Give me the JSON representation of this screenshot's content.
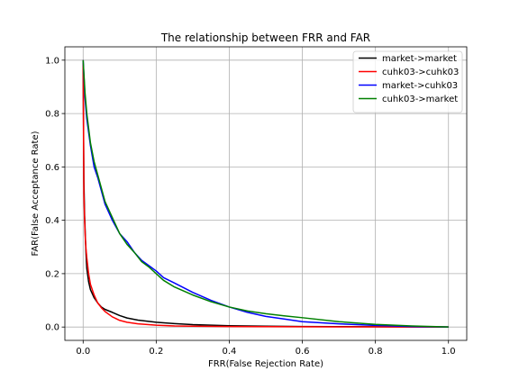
{
  "chart_data": {
    "type": "line",
    "title": "The relationship between FRR and FAR",
    "xlabel": "FRR(False Rejection Rate)",
    "ylabel": "FAR(False Acceptance Rate)",
    "xlim": [
      -0.05,
      1.05
    ],
    "ylim": [
      -0.05,
      1.05
    ],
    "xticks": [
      0.0,
      0.2,
      0.4,
      0.6,
      0.8,
      1.0
    ],
    "yticks": [
      0.0,
      0.2,
      0.4,
      0.6,
      0.8,
      1.0
    ],
    "tick_labels_x": [
      "0.0",
      "0.2",
      "0.4",
      "0.6",
      "0.8",
      "1.0"
    ],
    "tick_labels_y": [
      "0.0",
      "0.2",
      "0.4",
      "0.6",
      "0.8",
      "1.0"
    ],
    "grid": true,
    "legend_position": "top-right",
    "series": [
      {
        "name": "market->market",
        "color": "#000000",
        "x": [
          0.0,
          0.002,
          0.004,
          0.006,
          0.008,
          0.01,
          0.015,
          0.02,
          0.03,
          0.04,
          0.05,
          0.06,
          0.08,
          0.1,
          0.12,
          0.15,
          0.2,
          0.25,
          0.3,
          0.4,
          0.5,
          0.6,
          0.7,
          0.8,
          0.9,
          1.0
        ],
        "y": [
          1.0,
          0.55,
          0.42,
          0.34,
          0.27,
          0.22,
          0.17,
          0.14,
          0.11,
          0.09,
          0.075,
          0.066,
          0.055,
          0.043,
          0.034,
          0.026,
          0.018,
          0.013,
          0.009,
          0.005,
          0.003,
          0.002,
          0.0015,
          0.001,
          0.0005,
          0.0
        ]
      },
      {
        "name": "cuhk03->cuhk03",
        "color": "#ff0000",
        "x": [
          0.0,
          0.002,
          0.004,
          0.006,
          0.008,
          0.01,
          0.015,
          0.02,
          0.03,
          0.04,
          0.05,
          0.06,
          0.08,
          0.1,
          0.12,
          0.15,
          0.2,
          0.25,
          0.3,
          0.4,
          0.5,
          0.6,
          0.7,
          0.8,
          0.9,
          1.0
        ],
        "y": [
          1.0,
          0.5,
          0.4,
          0.33,
          0.29,
          0.26,
          0.2,
          0.16,
          0.12,
          0.09,
          0.072,
          0.058,
          0.038,
          0.025,
          0.018,
          0.012,
          0.007,
          0.004,
          0.003,
          0.002,
          0.0015,
          0.001,
          0.0008,
          0.0005,
          0.0002,
          0.0
        ]
      },
      {
        "name": "market->cuhk03",
        "color": "#0000ff",
        "x": [
          0.0,
          0.005,
          0.01,
          0.02,
          0.03,
          0.04,
          0.05,
          0.06,
          0.07,
          0.08,
          0.1,
          0.12,
          0.14,
          0.16,
          0.18,
          0.2,
          0.22,
          0.25,
          0.3,
          0.35,
          0.4,
          0.45,
          0.5,
          0.55,
          0.6,
          0.7,
          0.8,
          0.9,
          1.0
        ],
        "y": [
          1.0,
          0.86,
          0.78,
          0.68,
          0.6,
          0.56,
          0.51,
          0.46,
          0.43,
          0.4,
          0.35,
          0.32,
          0.28,
          0.25,
          0.23,
          0.21,
          0.185,
          0.165,
          0.13,
          0.1,
          0.075,
          0.055,
          0.04,
          0.03,
          0.02,
          0.012,
          0.006,
          0.002,
          0.0
        ]
      },
      {
        "name": "cuhk03->market",
        "color": "#008000",
        "x": [
          0.0,
          0.005,
          0.01,
          0.02,
          0.03,
          0.04,
          0.05,
          0.06,
          0.07,
          0.08,
          0.1,
          0.12,
          0.14,
          0.16,
          0.18,
          0.2,
          0.22,
          0.25,
          0.3,
          0.35,
          0.4,
          0.45,
          0.5,
          0.55,
          0.6,
          0.7,
          0.8,
          0.9,
          1.0
        ],
        "y": [
          1.0,
          0.88,
          0.8,
          0.69,
          0.62,
          0.57,
          0.52,
          0.47,
          0.44,
          0.41,
          0.35,
          0.31,
          0.28,
          0.245,
          0.225,
          0.2,
          0.175,
          0.15,
          0.12,
          0.095,
          0.075,
          0.06,
          0.05,
          0.042,
          0.035,
          0.02,
          0.01,
          0.004,
          0.0
        ]
      }
    ]
  }
}
